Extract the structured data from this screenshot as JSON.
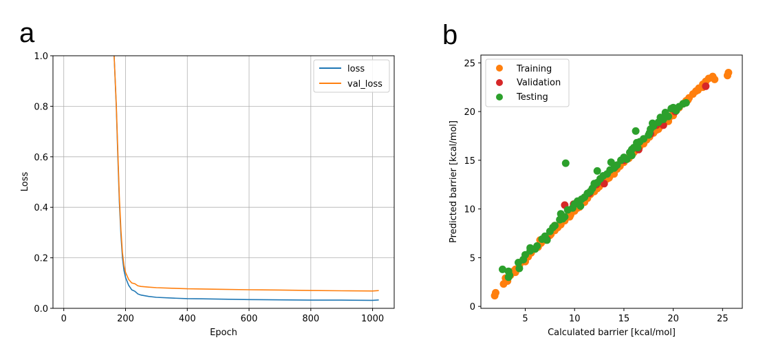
{
  "colors": {
    "blue": "#1f77b4",
    "orange": "#ff7f0e",
    "red": "#d62728",
    "green": "#2ca02c",
    "grid": "#b0b0b0"
  },
  "chart_data": [
    {
      "panel": "a",
      "type": "line",
      "title": "",
      "xlabel": "Epoch",
      "ylabel": "Loss",
      "xlim": [
        -35,
        1070
      ],
      "ylim": [
        0.0,
        1.0
      ],
      "xticks": [
        0,
        200,
        400,
        600,
        800,
        1000
      ],
      "yticks": [
        0.0,
        0.2,
        0.4,
        0.6,
        0.8,
        1.0
      ],
      "ytick_labels": [
        "0.0",
        "0.2",
        "0.4",
        "0.6",
        "0.8",
        "1.0"
      ],
      "grid": true,
      "legend_position": "upper right",
      "series": [
        {
          "name": "loss",
          "color": "#1f77b4",
          "x": [
            163,
            170,
            175,
            180,
            185,
            190,
            195,
            200,
            210,
            220,
            230,
            240,
            250,
            275,
            300,
            350,
            400,
            450,
            500,
            600,
            700,
            800,
            900,
            1000,
            1020
          ],
          "y": [
            1.0,
            0.8,
            0.6,
            0.42,
            0.29,
            0.2,
            0.15,
            0.12,
            0.092,
            0.075,
            0.065,
            0.058,
            0.054,
            0.049,
            0.046,
            0.043,
            0.041,
            0.04,
            0.039,
            0.037,
            0.036,
            0.035,
            0.035,
            0.034,
            0.034
          ]
        },
        {
          "name": "val_loss",
          "color": "#ff7f0e",
          "x": [
            163,
            170,
            175,
            180,
            185,
            190,
            195,
            200,
            210,
            220,
            230,
            240,
            250,
            275,
            300,
            350,
            400,
            450,
            500,
            600,
            700,
            800,
            900,
            1000,
            1020
          ],
          "y": [
            1.0,
            0.81,
            0.62,
            0.44,
            0.31,
            0.22,
            0.17,
            0.14,
            0.115,
            0.102,
            0.095,
            0.09,
            0.088,
            0.086,
            0.084,
            0.082,
            0.08,
            0.079,
            0.078,
            0.076,
            0.075,
            0.073,
            0.072,
            0.071,
            0.071
          ]
        }
      ]
    },
    {
      "panel": "b",
      "type": "scatter",
      "title": "",
      "xlabel": "Calculated barrier [kcal/mol]",
      "ylabel": "Predicted barrier [kcal/mol]",
      "xlim": [
        0.5,
        27
      ],
      "ylim": [
        -0.2,
        25.8
      ],
      "xticks": [
        5,
        10,
        15,
        20,
        25
      ],
      "yticks": [
        0,
        5,
        10,
        15,
        20,
        25
      ],
      "grid": false,
      "legend_position": "upper left",
      "series": [
        {
          "name": "Training",
          "color": "#ff7f0e",
          "x": [
            1.9,
            2.0,
            2.8,
            3.0,
            3.2,
            3.5,
            3.8,
            4.0,
            4.4,
            4.7,
            5.0,
            5.3,
            5.6,
            6.0,
            6.3,
            6.6,
            7.0,
            7.3,
            7.6,
            8.0,
            8.3,
            8.6,
            9.0,
            9.3,
            9.6,
            10.0,
            10.3,
            10.6,
            11.0,
            11.3,
            11.6,
            12.0,
            12.3,
            12.6,
            13.0,
            13.3,
            13.6,
            14.0,
            14.3,
            14.6,
            15.0,
            15.3,
            15.6,
            16.0,
            16.3,
            16.6,
            17.0,
            17.3,
            17.6,
            18.0,
            18.3,
            18.6,
            19.0,
            19.3,
            19.6,
            20.0,
            20.3,
            20.6,
            21.0,
            21.3,
            21.6,
            22.0,
            22.3,
            22.6,
            23.0,
            23.3,
            23.6,
            24.0,
            25.5,
            25.6,
            5.0,
            6.5,
            8.0,
            9.5,
            11.0,
            12.5,
            14.0,
            15.5,
            17.0,
            18.5,
            20.0,
            21.5,
            23.0,
            4.0,
            7.5,
            10.5,
            13.5,
            16.5,
            19.5,
            22.5,
            24.2
          ],
          "y": [
            1.1,
            1.4,
            2.3,
            2.9,
            2.6,
            3.2,
            3.6,
            3.8,
            4.2,
            4.6,
            4.9,
            5.1,
            5.5,
            5.9,
            6.1,
            6.5,
            6.8,
            7.2,
            7.4,
            7.8,
            8.1,
            8.4,
            8.8,
            9.2,
            9.4,
            9.8,
            10.1,
            10.4,
            10.8,
            11.1,
            11.5,
            11.8,
            12.1,
            12.5,
            12.8,
            13.1,
            13.4,
            13.8,
            14.1,
            14.4,
            14.8,
            15.1,
            15.4,
            15.8,
            16.1,
            16.4,
            16.8,
            17.1,
            17.4,
            17.8,
            18.1,
            18.4,
            18.8,
            19.1,
            19.4,
            19.8,
            20.1,
            20.4,
            20.8,
            21.1,
            21.4,
            21.8,
            22.1,
            22.4,
            22.8,
            23.1,
            23.4,
            23.6,
            23.7,
            24.0,
            4.6,
            6.8,
            8.3,
            9.2,
            10.7,
            12.3,
            13.6,
            15.2,
            16.7,
            18.2,
            19.6,
            21.2,
            22.5,
            3.5,
            7.3,
            10.2,
            13.2,
            16.2,
            19.0,
            22.2,
            23.3
          ]
        },
        {
          "name": "Validation",
          "color": "#d62728",
          "x": [
            4.8,
            7.2,
            9.0,
            9.9,
            11.5,
            12.2,
            13.0,
            14.1,
            15.0,
            16.5,
            17.7,
            18.3,
            19.0,
            20.2,
            23.3
          ],
          "y": [
            4.8,
            6.9,
            10.4,
            10.5,
            11.6,
            12.5,
            12.6,
            14.3,
            15.0,
            16.1,
            17.7,
            18.6,
            18.6,
            20.0,
            22.6
          ]
        },
        {
          "name": "Testing",
          "color": "#2ca02c",
          "x": [
            2.7,
            3.3,
            3.4,
            4.3,
            4.8,
            5.0,
            5.5,
            6.0,
            6.2,
            6.7,
            7.0,
            7.5,
            7.8,
            8.0,
            8.5,
            8.8,
            9.0,
            9.3,
            9.8,
            10.0,
            10.3,
            10.7,
            11.0,
            11.3,
            11.6,
            11.8,
            12.0,
            12.3,
            12.6,
            12.9,
            13.3,
            13.6,
            14.0,
            14.3,
            14.7,
            15.0,
            15.3,
            15.6,
            15.8,
            16.0,
            16.3,
            16.6,
            17.0,
            17.5,
            17.7,
            18.0,
            18.5,
            19.0,
            19.5,
            19.8,
            20.0,
            20.3,
            20.6,
            21.0,
            21.3,
            5.5,
            7.2,
            8.6,
            10.6,
            12.0,
            13.7,
            15.8,
            16.4,
            17.6,
            9.1,
            12.3,
            16.2,
            17.9,
            18.7,
            19.2,
            3.3,
            4.4
          ],
          "y": [
            3.8,
            3.6,
            3.2,
            4.5,
            4.8,
            5.3,
            5.7,
            5.9,
            6.2,
            6.9,
            7.2,
            7.7,
            8.1,
            8.3,
            8.9,
            9.0,
            9.2,
            9.9,
            10.1,
            10.5,
            10.8,
            11.0,
            11.2,
            11.6,
            11.8,
            12.1,
            12.5,
            12.7,
            13.1,
            13.4,
            13.6,
            14.0,
            14.2,
            14.5,
            15.0,
            15.3,
            15.1,
            15.8,
            16.1,
            16.3,
            16.8,
            16.9,
            17.2,
            17.6,
            18.2,
            18.5,
            18.9,
            19.2,
            19.5,
            20.3,
            20.4,
            20.1,
            20.5,
            20.8,
            20.9,
            6.0,
            6.8,
            9.5,
            10.3,
            12.6,
            14.8,
            15.5,
            16.3,
            17.8,
            14.7,
            13.9,
            18.0,
            18.8,
            19.4,
            19.9,
            3.0,
            3.9
          ]
        }
      ]
    }
  ]
}
